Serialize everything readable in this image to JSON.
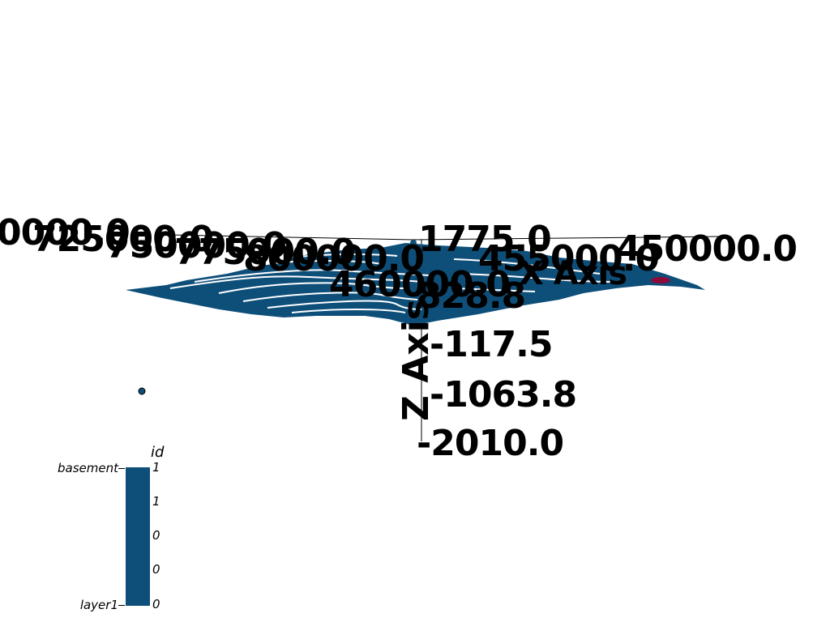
{
  "scene": {
    "surface_color": "#0e4f7a",
    "contour_color": "#ffffff",
    "accent_color": "#8b0a3c"
  },
  "axes": {
    "x_axis_title": "X Axis",
    "z_axis_title": "Z Axis",
    "z_ticks": [
      "1775.0",
      "828.8",
      "-117.5",
      "-1063.8",
      "-2010.0"
    ],
    "x_ticks_left": [
      "0000.0",
      "725000.0",
      "750000.0",
      "775000.0",
      "800000.0"
    ],
    "x_ticks_right": [
      "460000.0",
      "455000.0",
      "450000.0"
    ]
  },
  "legend": {
    "title": "id",
    "tick_values": [
      "1",
      "1",
      "0",
      "0",
      "0"
    ],
    "top_category": "basement",
    "bottom_category": "layer1",
    "bar_color": "#0e4f7a"
  }
}
